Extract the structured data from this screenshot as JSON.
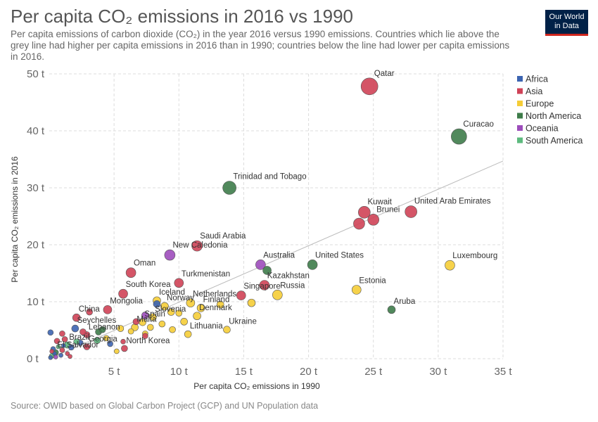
{
  "header": {
    "title": "Per capita CO₂ emissions in 2016 vs 1990",
    "subtitle": "Per capita emissions of carbon dioxide (CO₂) in the year 2016 versus 1990 emissions. Countries which lie above the grey line had higher per capita emissions in 2016 than in 1990; countries below the line had lower per capita emissions in 2016.",
    "logo_line1": "Our World",
    "logo_line2": "in Data"
  },
  "footer": {
    "source": "Source: OWID based on Global Carbon Project (GCP) and UN Population data"
  },
  "colors": {
    "Africa": "#3c64b1",
    "Asia": "#cf4257",
    "Europe": "#f5cd37",
    "North America": "#3e7c4a",
    "Oceania": "#9d4dbb",
    "South America": "#5dba7e"
  },
  "chart_data": {
    "type": "scatter",
    "xlabel": "Per capita CO₂ emissions in 1990",
    "ylabel": "Per capita CO₂ emissions in 2016",
    "xlim": [
      0,
      35
    ],
    "ylim": [
      0,
      50
    ],
    "x_ticks": [
      5,
      10,
      15,
      20,
      25,
      30,
      35
    ],
    "x_tick_labels": [
      "5 t",
      "10 t",
      "15 t",
      "20 t",
      "25 t",
      "30 t",
      "35 t"
    ],
    "y_ticks": [
      0,
      10,
      20,
      30,
      40,
      50
    ],
    "y_tick_labels": [
      "0 t",
      "10 t",
      "20 t",
      "30 t",
      "40 t",
      "50 t"
    ],
    "grid": true,
    "reference_line": {
      "from": [
        0,
        0
      ],
      "to": [
        35,
        34.7
      ]
    },
    "legend": {
      "placement": "right",
      "entries": [
        "Africa",
        "Asia",
        "Europe",
        "North America",
        "Oceania",
        "South America"
      ]
    },
    "points": [
      {
        "label": "Qatar",
        "region": "Asia",
        "x": 24.7,
        "y": 47.8,
        "size": 12
      },
      {
        "label": "Curacao",
        "region": "North America",
        "x": 31.6,
        "y": 39.0,
        "size": 11
      },
      {
        "label": "Trinidad and Tobago",
        "region": "North America",
        "x": 13.9,
        "y": 30.0,
        "size": 9.5
      },
      {
        "label": "Kuwait",
        "region": "Asia",
        "x": 24.3,
        "y": 25.7,
        "size": 8.5
      },
      {
        "label": "United Arab Emirates",
        "region": "Asia",
        "x": 27.9,
        "y": 25.8,
        "size": 8.5
      },
      {
        "label": "Brunei",
        "region": "Asia",
        "x": 25.0,
        "y": 24.4,
        "size": 8
      },
      {
        "label": "",
        "region": "Asia",
        "x": 23.9,
        "y": 23.7,
        "size": 8
      },
      {
        "label": "Saudi Arabia",
        "region": "Asia",
        "x": 11.4,
        "y": 19.8,
        "size": 7.5
      },
      {
        "label": "New Caledonia",
        "region": "Oceania",
        "x": 9.3,
        "y": 18.2,
        "size": 7.5
      },
      {
        "label": "United States",
        "region": "North America",
        "x": 20.3,
        "y": 16.5,
        "size": 7
      },
      {
        "label": "Luxembourg",
        "region": "Europe",
        "x": 30.9,
        "y": 16.4,
        "size": 7
      },
      {
        "label": "Australia",
        "region": "Oceania",
        "x": 16.3,
        "y": 16.5,
        "size": 7
      },
      {
        "label": "",
        "region": "North America",
        "x": 16.8,
        "y": 15.5,
        "size": 6
      },
      {
        "label": "Oman",
        "region": "Asia",
        "x": 6.3,
        "y": 15.1,
        "size": 7
      },
      {
        "label": "Kazakhstan",
        "region": "Asia",
        "x": 16.6,
        "y": 12.9,
        "size": 7
      },
      {
        "label": "Turkmenistan",
        "region": "Asia",
        "x": 10.0,
        "y": 13.3,
        "size": 6.5
      },
      {
        "label": "Estonia",
        "region": "Europe",
        "x": 23.7,
        "y": 12.1,
        "size": 6.5
      },
      {
        "label": "South Korea",
        "region": "Asia",
        "x": 5.7,
        "y": 11.4,
        "size": 6.5
      },
      {
        "label": "Singapore",
        "region": "Asia",
        "x": 14.8,
        "y": 11.1,
        "size": 6.5
      },
      {
        "label": "Russia",
        "region": "Europe",
        "x": 17.6,
        "y": 11.2,
        "size": 7
      },
      {
        "label": "Iceland",
        "region": "Europe",
        "x": 8.3,
        "y": 10.2,
        "size": 5.5
      },
      {
        "label": "Netherlands",
        "region": "Europe",
        "x": 10.9,
        "y": 9.8,
        "size": 6
      },
      {
        "label": "Norway",
        "region": "Europe",
        "x": 8.9,
        "y": 9.2,
        "size": 5.5
      },
      {
        "label": "Finland",
        "region": "Europe",
        "x": 11.7,
        "y": 8.9,
        "size": 5.5
      },
      {
        "label": "",
        "region": "Europe",
        "x": 15.6,
        "y": 9.8,
        "size": 5.5
      },
      {
        "label": "",
        "region": "Europe",
        "x": 13.2,
        "y": 9.5,
        "size": 5
      },
      {
        "label": "",
        "region": "Africa",
        "x": 8.3,
        "y": 9.6,
        "size": 5
      },
      {
        "label": "Mongolia",
        "region": "Asia",
        "x": 4.5,
        "y": 8.6,
        "size": 6
      },
      {
        "label": "China",
        "region": "Asia",
        "x": 2.1,
        "y": 7.2,
        "size": 5.5
      },
      {
        "label": "",
        "region": "Asia",
        "x": 3.1,
        "y": 8.2,
        "size": 4.5
      },
      {
        "label": "Aruba",
        "region": "North America",
        "x": 26.4,
        "y": 8.6,
        "size": 5.5
      },
      {
        "label": "Denmark",
        "region": "Europe",
        "x": 11.4,
        "y": 7.5,
        "size": 5.5
      },
      {
        "label": "Slovenia",
        "region": "Europe",
        "x": 8.0,
        "y": 7.3,
        "size": 5
      },
      {
        "label": "",
        "region": "Oceania",
        "x": 7.4,
        "y": 7.6,
        "size": 5
      },
      {
        "label": "",
        "region": "Europe",
        "x": 9.4,
        "y": 8.2,
        "size": 5
      },
      {
        "label": "",
        "region": "Europe",
        "x": 10.0,
        "y": 8.0,
        "size": 4.5
      },
      {
        "label": "Spain",
        "region": "Europe",
        "x": 7.2,
        "y": 6.4,
        "size": 5
      },
      {
        "label": "",
        "region": "Europe",
        "x": 10.4,
        "y": 6.5,
        "size": 5
      },
      {
        "label": "",
        "region": "Europe",
        "x": 8.7,
        "y": 6.1,
        "size": 4.5
      },
      {
        "label": "",
        "region": "Asia",
        "x": 6.7,
        "y": 6.5,
        "size": 4.5
      },
      {
        "label": "Seychelles",
        "region": "Africa",
        "x": 2.0,
        "y": 5.3,
        "size": 5
      },
      {
        "label": "Malta",
        "region": "Europe",
        "x": 6.6,
        "y": 5.5,
        "size": 5
      },
      {
        "label": "Lithuania",
        "region": "Europe",
        "x": 10.7,
        "y": 4.3,
        "size": 5
      },
      {
        "label": "Ukraine",
        "region": "Europe",
        "x": 13.7,
        "y": 5.1,
        "size": 5
      },
      {
        "label": "",
        "region": "Europe",
        "x": 7.8,
        "y": 5.5,
        "size": 4.5
      },
      {
        "label": "",
        "region": "Europe",
        "x": 9.5,
        "y": 5.1,
        "size": 4.5
      },
      {
        "label": "",
        "region": "Europe",
        "x": 6.3,
        "y": 4.8,
        "size": 4
      },
      {
        "label": "",
        "region": "Europe",
        "x": 7.4,
        "y": 4.4,
        "size": 4
      },
      {
        "label": "",
        "region": "Europe",
        "x": 5.5,
        "y": 5.3,
        "size": 4.5
      },
      {
        "label": "Lebanon",
        "region": "Asia",
        "x": 2.9,
        "y": 4.2,
        "size": 4.5
      },
      {
        "label": "",
        "region": "North America",
        "x": 3.8,
        "y": 4.7,
        "size": 4.5
      },
      {
        "label": "",
        "region": "North America",
        "x": 4.1,
        "y": 5.1,
        "size": 4.5
      },
      {
        "label": "",
        "region": "Asia",
        "x": 2.6,
        "y": 4.7,
        "size": 4.5
      },
      {
        "label": "",
        "region": "Africa",
        "x": 0.1,
        "y": 4.6,
        "size": 4
      },
      {
        "label": "",
        "region": "Asia",
        "x": 1.0,
        "y": 4.4,
        "size": 4
      },
      {
        "label": "",
        "region": "Asia",
        "x": 7.4,
        "y": 4.0,
        "size": 4
      },
      {
        "label": "Brazil",
        "region": "South America",
        "x": 1.4,
        "y": 2.4,
        "size": 4.5
      },
      {
        "label": "Georgia",
        "region": "Asia",
        "x": 2.9,
        "y": 2.1,
        "size": 4.5
      },
      {
        "label": "",
        "region": "South America",
        "x": 3.7,
        "y": 3.2,
        "size": 4.5
      },
      {
        "label": "",
        "region": "Africa",
        "x": 2.4,
        "y": 2.8,
        "size": 4
      },
      {
        "label": "",
        "region": "Europe",
        "x": 4.4,
        "y": 3.6,
        "size": 4
      },
      {
        "label": "",
        "region": "Africa",
        "x": 4.7,
        "y": 2.6,
        "size": 4
      },
      {
        "label": "",
        "region": "Asia",
        "x": 0.6,
        "y": 3.1,
        "size": 4
      },
      {
        "label": "",
        "region": "Asia",
        "x": 1.2,
        "y": 3.4,
        "size": 4
      },
      {
        "label": "",
        "region": "South America",
        "x": 2.1,
        "y": 3.0,
        "size": 4
      },
      {
        "label": "",
        "region": "Africa",
        "x": 1.7,
        "y": 2.0,
        "size": 4
      },
      {
        "label": "North Korea",
        "region": "Asia",
        "x": 5.8,
        "y": 1.8,
        "size": 4.5
      },
      {
        "label": "",
        "region": "Asia",
        "x": 5.7,
        "y": 3.0,
        "size": 3.5
      },
      {
        "label": "",
        "region": "Europe",
        "x": 5.2,
        "y": 1.3,
        "size": 3.5
      },
      {
        "label": "El Salvador",
        "region": "North America",
        "x": 0.5,
        "y": 1.1,
        "size": 4
      },
      {
        "label": "",
        "region": "Asia",
        "x": 1.0,
        "y": 1.5,
        "size": 3.5
      },
      {
        "label": "",
        "region": "Africa",
        "x": 0.3,
        "y": 1.7,
        "size": 3.5
      },
      {
        "label": "",
        "region": "South America",
        "x": 0.2,
        "y": 0.5,
        "size": 3.5
      },
      {
        "label": "",
        "region": "Africa",
        "x": 0.4,
        "y": 0.9,
        "size": 3
      },
      {
        "label": "",
        "region": "Asia",
        "x": 0.2,
        "y": 1.3,
        "size": 3
      },
      {
        "label": "",
        "region": "Oceania",
        "x": 0.5,
        "y": 0.3,
        "size": 3
      },
      {
        "label": "",
        "region": "Africa",
        "x": 0.9,
        "y": 0.6,
        "size": 3
      },
      {
        "label": "",
        "region": "Asia",
        "x": 1.4,
        "y": 0.9,
        "size": 3
      },
      {
        "label": "",
        "region": "South America",
        "x": 0.7,
        "y": 2.1,
        "size": 3
      },
      {
        "label": "",
        "region": "Africa",
        "x": 0.1,
        "y": 0.2,
        "size": 3
      },
      {
        "label": "",
        "region": "Asia",
        "x": 1.6,
        "y": 0.4,
        "size": 3
      },
      {
        "label": "",
        "region": "Africa",
        "x": 1.1,
        "y": 2.3,
        "size": 3
      }
    ]
  }
}
